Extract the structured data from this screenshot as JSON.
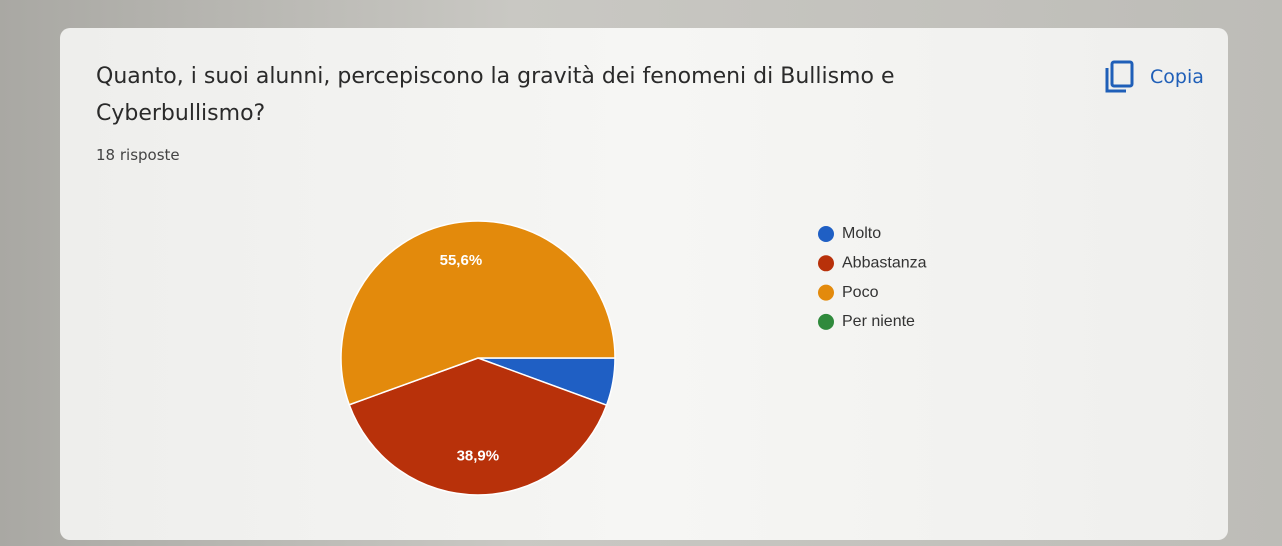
{
  "chart_data": {
    "type": "pie",
    "title": "Quanto, i suoi alunni, percepiscono la gravità dei fenomeni di Bullismo e Cyberbullismo?",
    "subtitle": "18 risposte",
    "categories": [
      "Molto",
      "Abbastanza",
      "Poco",
      "Per niente"
    ],
    "values": [
      5.6,
      38.9,
      55.6,
      0
    ],
    "value_labels": [
      null,
      "38,9%",
      "55,6%",
      null
    ],
    "colors": [
      "#1f5fc4",
      "#b8310a",
      "#e38a0c",
      "#2f8a3c"
    ],
    "legend": "right"
  },
  "actions": {
    "copy": "Copia"
  }
}
